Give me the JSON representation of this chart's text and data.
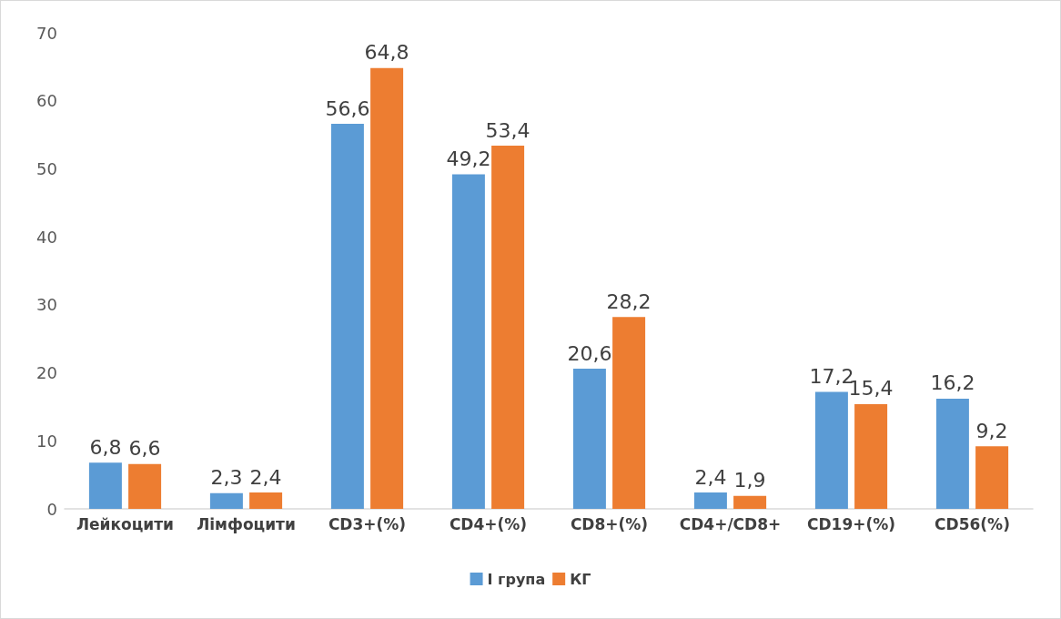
{
  "chart_data": {
    "type": "bar",
    "categories": [
      "Лейкоцити",
      "Лімфоцити",
      "CD3+(%)",
      "CD4+(%)",
      "CD8+(%)",
      "CD4+/CD8+",
      "CD19+(%)",
      "CD56(%)"
    ],
    "series": [
      {
        "name": "І група",
        "color": "#5b9bd5",
        "values": [
          6.8,
          2.3,
          56.6,
          49.2,
          20.6,
          2.4,
          17.2,
          16.2
        ],
        "value_labels": [
          "6,8",
          "2,3",
          "56,6",
          "49,2",
          "20,6",
          "2,4",
          "17,2",
          "16,2"
        ]
      },
      {
        "name": "КГ",
        "color": "#ed7d31",
        "values": [
          6.6,
          2.4,
          64.8,
          53.4,
          28.2,
          1.9,
          15.4,
          9.2
        ],
        "value_labels": [
          "6,6",
          "2,4",
          "64,8",
          "53,4",
          "28,2",
          "1,9",
          "15,4",
          "9,2"
        ]
      }
    ],
    "ylim": [
      0,
      70
    ],
    "yticks": [
      0,
      10,
      20,
      30,
      40,
      50,
      60,
      70
    ],
    "grid": false,
    "legend": "bottom"
  }
}
